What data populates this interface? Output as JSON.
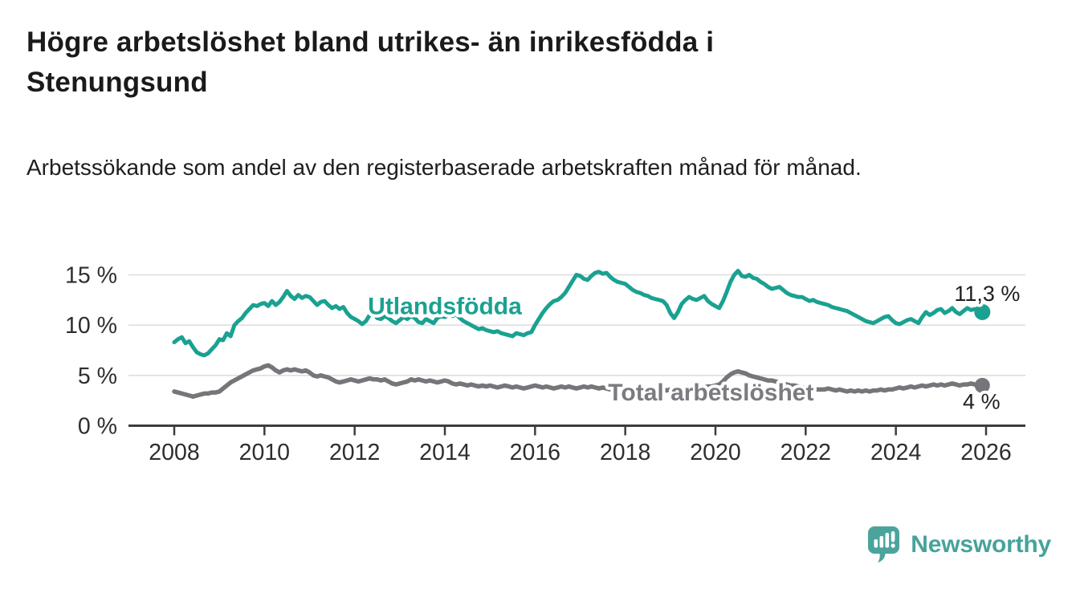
{
  "header": {
    "title": "Högre arbetslöshet bland utrikes- än inrikesfödda i Stenungsund",
    "subtitle": "Arbetssökande som andel av den registerbaserade arbetskraften månad för månad."
  },
  "footer": {
    "brand": "Newsworthy"
  },
  "colors": {
    "accent_teal": "#1aa191",
    "series_gray": "#75757a",
    "gray_label": "#7b7b80",
    "grid": "#dcdcdc",
    "axis": "#3d3d3d",
    "tick_text": "#2e2e2e",
    "annotation_text": "#1f1f1f",
    "logo_teal": "#46a39c"
  },
  "chart_data": {
    "type": "line",
    "title": "Högre arbetslöshet bland utrikes- än inrikesfödda i Stenungsund",
    "subtitle": "Arbetssökande som andel av den registerbaserade arbetskraften månad för månad.",
    "unit": "%",
    "frequency": "monthly",
    "xlim": [
      2008,
      2026
    ],
    "ylim": [
      0,
      16.5
    ],
    "grid": "horizontal",
    "x_ticks": [
      2008,
      2010,
      2012,
      2014,
      2016,
      2018,
      2020,
      2022,
      2024,
      2026
    ],
    "y_ticks": [
      {
        "v": 0,
        "label": "0 %"
      },
      {
        "v": 5,
        "label": "5 %"
      },
      {
        "v": 10,
        "label": "10 %"
      },
      {
        "v": 15,
        "label": "15 %"
      }
    ],
    "x_start_year": 2008,
    "series": [
      {
        "name": "Utlandsfödda",
        "color": "#1aa191",
        "label_color": "#1aa191",
        "end_label": "11,3 %",
        "end_value": 11.3,
        "label_anchor": {
          "t": 2014.0,
          "v": 11.9
        },
        "values": [
          8.3,
          8.6,
          8.8,
          8.2,
          8.4,
          7.8,
          7.3,
          7.1,
          7.0,
          7.2,
          7.6,
          8.0,
          8.6,
          8.5,
          9.2,
          8.9,
          10.0,
          10.4,
          10.7,
          11.2,
          11.6,
          12.0,
          11.9,
          12.1,
          12.2,
          11.9,
          12.4,
          12.0,
          12.3,
          12.8,
          13.4,
          12.9,
          12.6,
          13.0,
          12.7,
          12.9,
          12.8,
          12.4,
          12.0,
          12.3,
          12.4,
          12.0,
          11.7,
          11.9,
          11.6,
          11.8,
          11.2,
          10.8,
          10.6,
          10.4,
          10.1,
          10.4,
          11.0,
          11.2,
          10.7,
          10.6,
          10.9,
          10.7,
          10.4,
          10.2,
          10.5,
          10.8,
          10.6,
          10.9,
          10.7,
          10.3,
          10.2,
          10.6,
          10.4,
          10.2,
          10.7,
          10.9,
          10.8,
          11.0,
          10.9,
          11.1,
          10.7,
          10.4,
          10.2,
          10.0,
          9.8,
          9.6,
          9.7,
          9.5,
          9.4,
          9.3,
          9.4,
          9.2,
          9.1,
          9.0,
          8.9,
          9.2,
          9.1,
          9.0,
          9.2,
          9.3,
          10.0,
          10.6,
          11.2,
          11.7,
          12.1,
          12.4,
          12.5,
          12.8,
          13.2,
          13.8,
          14.4,
          15.0,
          14.9,
          14.6,
          14.5,
          14.9,
          15.2,
          15.3,
          15.1,
          15.2,
          14.8,
          14.5,
          14.3,
          14.2,
          14.1,
          13.8,
          13.5,
          13.3,
          13.2,
          13.0,
          12.9,
          12.7,
          12.6,
          12.5,
          12.4,
          12.0,
          11.2,
          10.7,
          11.3,
          12.1,
          12.5,
          12.8,
          12.6,
          12.5,
          12.7,
          12.9,
          12.4,
          12.1,
          11.9,
          11.7,
          12.4,
          13.3,
          14.3,
          15.0,
          15.4,
          14.9,
          14.8,
          15.0,
          14.7,
          14.6,
          14.3,
          14.1,
          13.8,
          13.6,
          13.7,
          13.8,
          13.5,
          13.2,
          13.0,
          12.9,
          12.8,
          12.8,
          12.6,
          12.4,
          12.5,
          12.3,
          12.2,
          12.1,
          12.0,
          11.8,
          11.7,
          11.6,
          11.5,
          11.4,
          11.2,
          11.0,
          10.8,
          10.6,
          10.4,
          10.3,
          10.2,
          10.4,
          10.6,
          10.8,
          10.9,
          10.5,
          10.2,
          10.1,
          10.3,
          10.5,
          10.6,
          10.4,
          10.2,
          10.8,
          11.3,
          11.0,
          11.2,
          11.5,
          11.6,
          11.2,
          11.4,
          11.7,
          11.3,
          11.1,
          11.4,
          11.7,
          11.5,
          11.6,
          11.4,
          11.3
        ]
      },
      {
        "name": "Total arbetslöshet",
        "color": "#75757a",
        "label_color": "#7b7b80",
        "end_label": "4 %",
        "end_value": 4.0,
        "label_anchor": {
          "t": 2019.9,
          "v": 3.3
        },
        "values": [
          3.4,
          3.3,
          3.2,
          3.1,
          3.0,
          2.9,
          3.0,
          3.1,
          3.2,
          3.2,
          3.3,
          3.3,
          3.4,
          3.7,
          4.0,
          4.3,
          4.5,
          4.7,
          4.9,
          5.1,
          5.3,
          5.5,
          5.6,
          5.7,
          5.9,
          6.0,
          5.8,
          5.5,
          5.3,
          5.5,
          5.6,
          5.5,
          5.6,
          5.5,
          5.4,
          5.5,
          5.3,
          5.0,
          4.9,
          5.0,
          4.9,
          4.8,
          4.6,
          4.4,
          4.3,
          4.4,
          4.5,
          4.6,
          4.5,
          4.4,
          4.5,
          4.6,
          4.7,
          4.6,
          4.6,
          4.5,
          4.6,
          4.4,
          4.2,
          4.1,
          4.2,
          4.3,
          4.4,
          4.6,
          4.5,
          4.6,
          4.5,
          4.4,
          4.5,
          4.4,
          4.3,
          4.4,
          4.5,
          4.4,
          4.2,
          4.1,
          4.2,
          4.1,
          4.0,
          4.1,
          4.0,
          3.9,
          4.0,
          3.9,
          4.0,
          3.9,
          3.8,
          3.9,
          4.0,
          3.9,
          3.8,
          3.9,
          3.8,
          3.7,
          3.8,
          3.9,
          4.0,
          3.9,
          3.8,
          3.9,
          3.8,
          3.7,
          3.8,
          3.9,
          3.8,
          3.9,
          3.8,
          3.7,
          3.8,
          3.9,
          3.8,
          3.9,
          3.8,
          3.7,
          3.8,
          3.7,
          3.6,
          3.7,
          3.6,
          3.5,
          3.6,
          3.5,
          3.6,
          3.5,
          3.4,
          3.5,
          3.6,
          3.5,
          3.6,
          3.5,
          3.6,
          3.5,
          3.6,
          3.5,
          3.6,
          3.7,
          3.6,
          3.7,
          3.7,
          3.8,
          3.7,
          3.8,
          3.9,
          3.9,
          4.0,
          4.1,
          4.4,
          4.8,
          5.1,
          5.3,
          5.4,
          5.3,
          5.2,
          5.0,
          4.9,
          4.8,
          4.7,
          4.6,
          4.5,
          4.5,
          4.4,
          4.3,
          4.2,
          4.1,
          4.0,
          4.0,
          3.9,
          3.8,
          3.8,
          3.7,
          3.7,
          3.6,
          3.6,
          3.6,
          3.7,
          3.6,
          3.5,
          3.6,
          3.5,
          3.4,
          3.5,
          3.4,
          3.5,
          3.4,
          3.5,
          3.4,
          3.5,
          3.5,
          3.6,
          3.5,
          3.6,
          3.6,
          3.7,
          3.8,
          3.7,
          3.8,
          3.9,
          3.8,
          3.9,
          4.0,
          3.9,
          4.0,
          4.1,
          4.0,
          4.1,
          4.0,
          4.1,
          4.2,
          4.1,
          4.0,
          4.1,
          4.1,
          4.2,
          4.1,
          4.0,
          4.0
        ]
      }
    ]
  }
}
